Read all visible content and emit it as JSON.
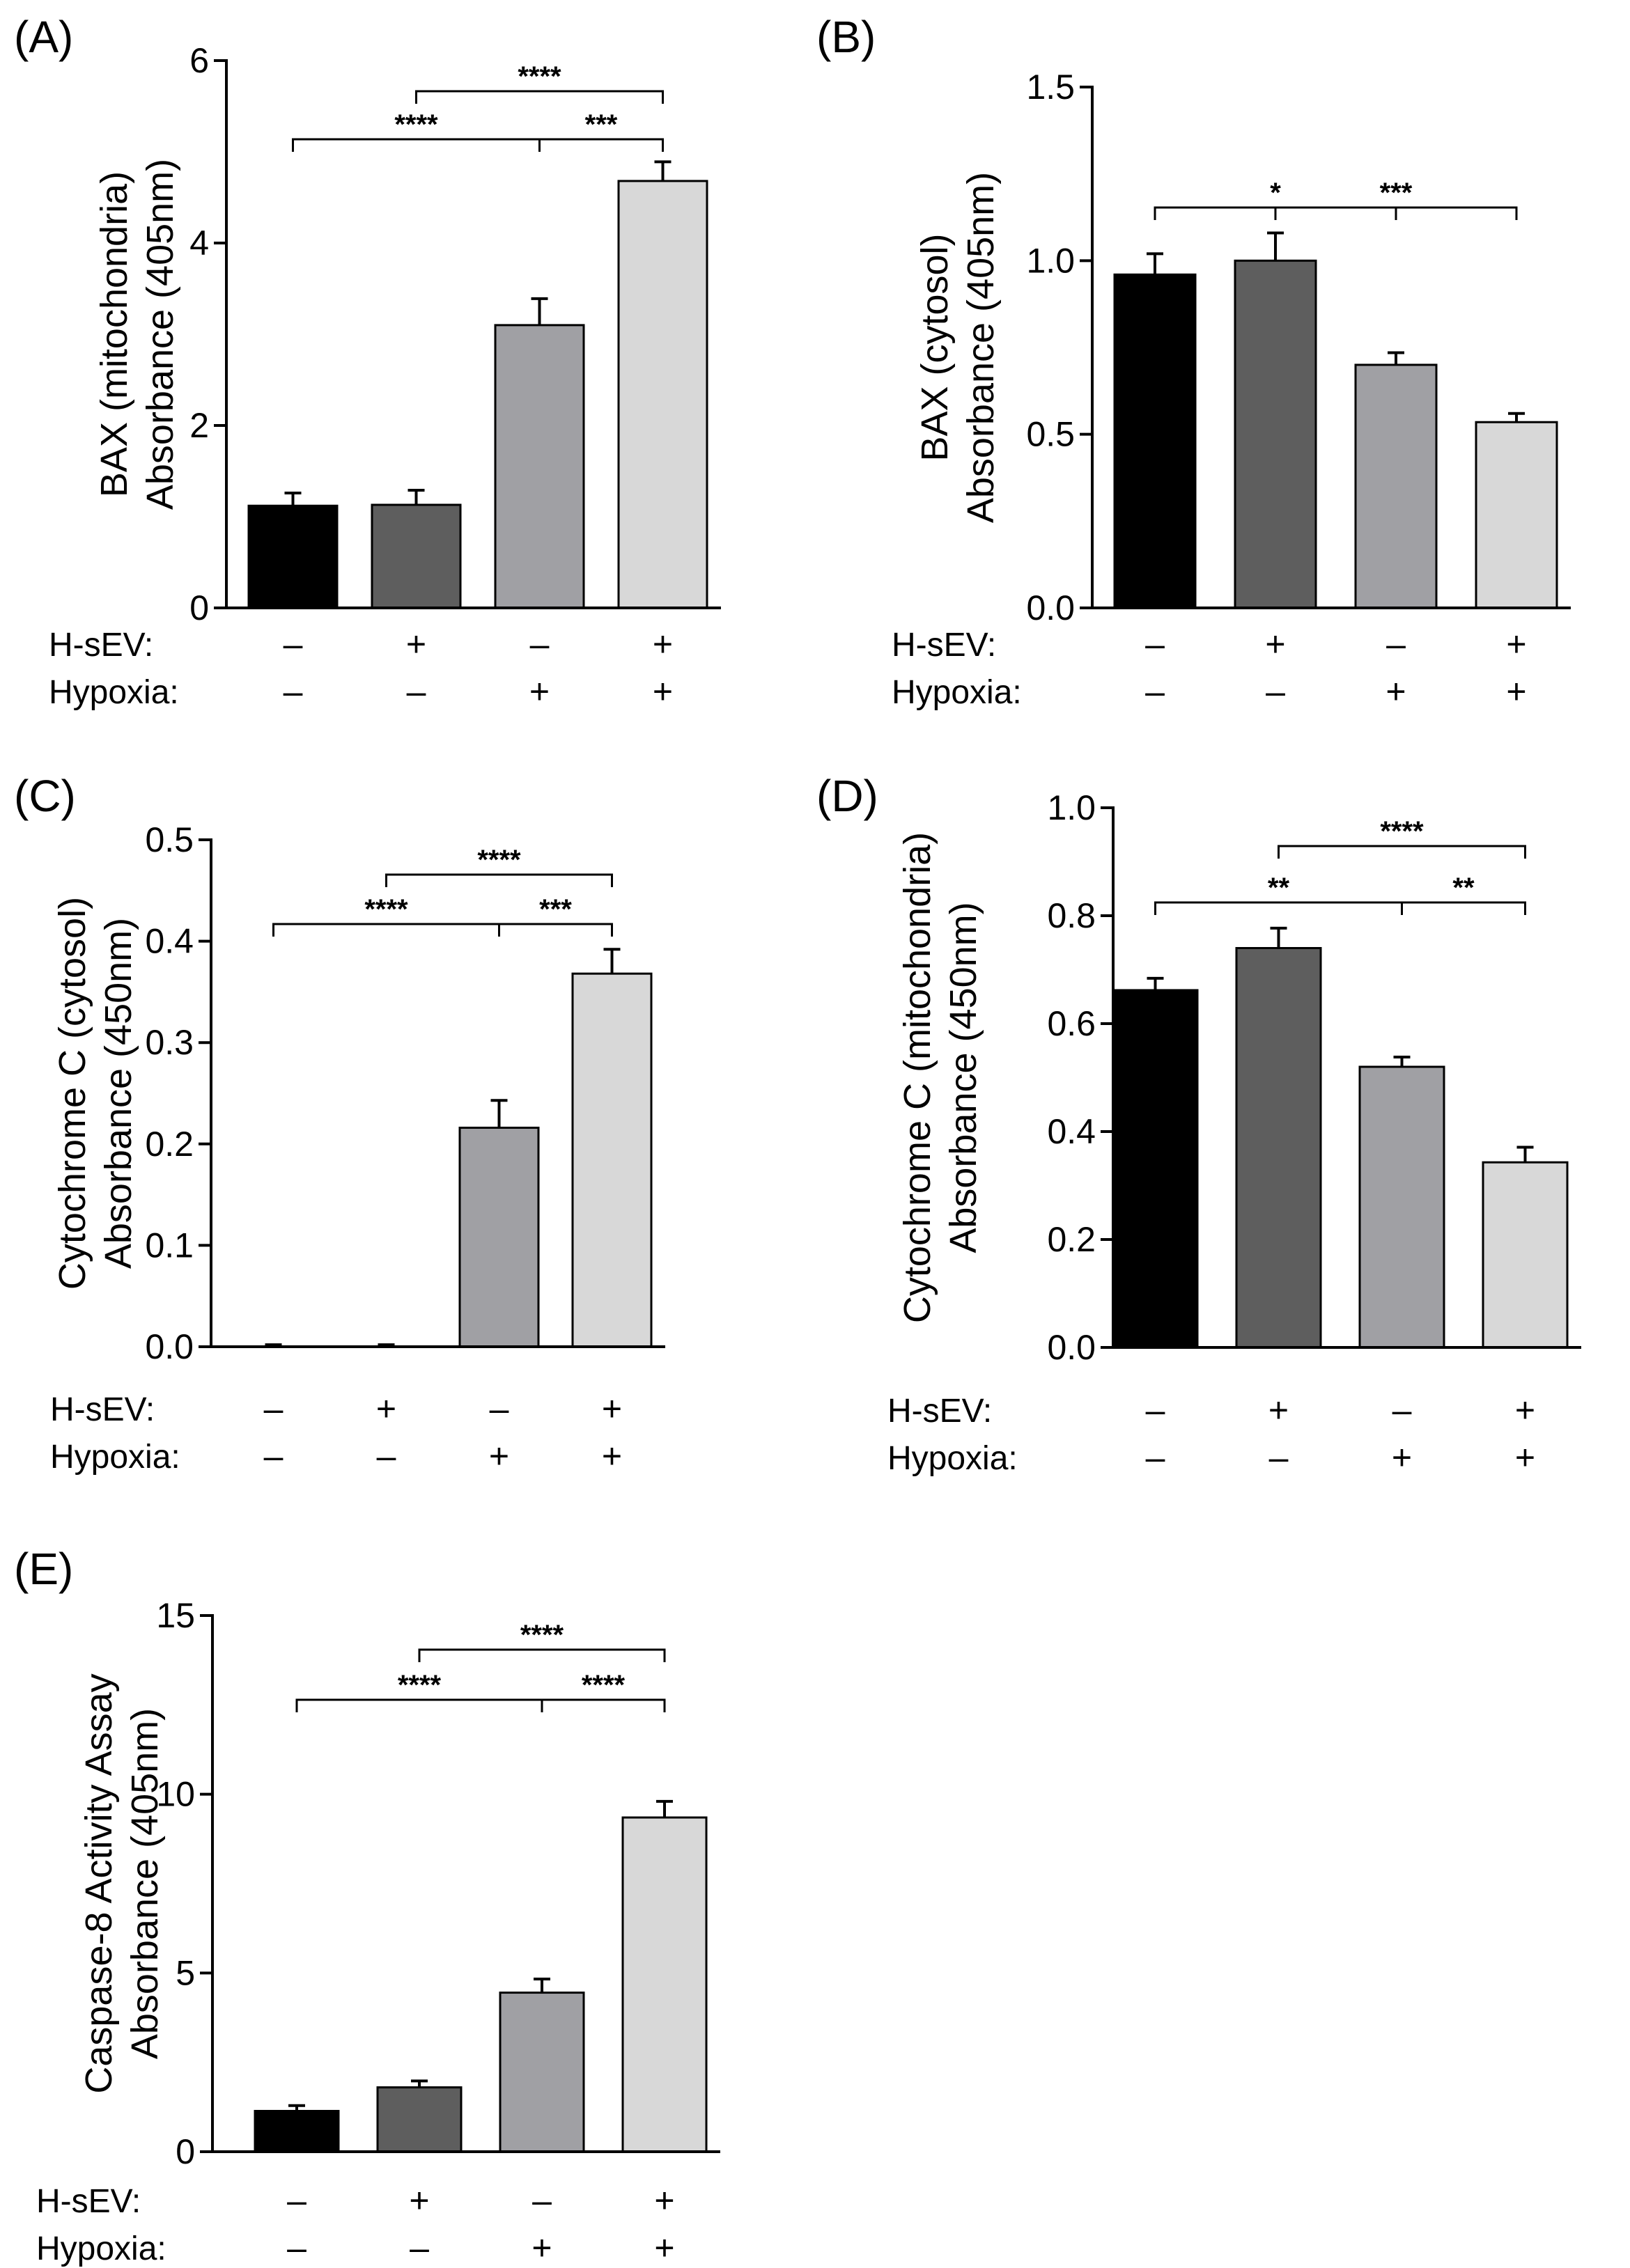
{
  "chart_data": [
    {
      "type": "bar",
      "panel": "(A)",
      "ylabel_lines": [
        "BAX (mitochondria)",
        "Absorbance (405nm)"
      ],
      "ylim": [
        0,
        6
      ],
      "yticks": [
        0,
        2,
        4,
        6
      ],
      "ytick_labels": [
        "0",
        "2",
        "4",
        "6"
      ],
      "values": [
        1.12,
        1.13,
        3.1,
        4.68
      ],
      "errors": [
        0.14,
        0.16,
        0.29,
        0.21
      ],
      "colors": [
        "#000000",
        "#5e5e5e",
        "#a0a0a4",
        "#d8d8d8"
      ],
      "conditions": {
        "row_labels": [
          "H-sEV:",
          "Hypoxia:"
        ],
        "signs": [
          [
            "–",
            "+",
            "–",
            "+"
          ],
          [
            "–",
            "–",
            "+",
            "+"
          ]
        ]
      },
      "significance": [
        {
          "from": 0,
          "to": 2,
          "label": "****"
        },
        {
          "from": 2,
          "to": 3,
          "label": "***"
        },
        {
          "from": 1,
          "to": 3,
          "label": "****"
        }
      ]
    },
    {
      "type": "bar",
      "panel": "(B)",
      "ylabel_lines": [
        "BAX (cytosol)",
        "Absorbance (405nm)"
      ],
      "ylim": [
        0,
        1.5
      ],
      "yticks": [
        0,
        0.5,
        1.0,
        1.5
      ],
      "ytick_labels": [
        "0.0",
        "0.5",
        "1.0",
        "1.5"
      ],
      "values": [
        0.96,
        1.0,
        0.7,
        0.535
      ],
      "errors": [
        0.06,
        0.08,
        0.035,
        0.025
      ],
      "colors": [
        "#000000",
        "#5e5e5e",
        "#a0a0a4",
        "#d8d8d8"
      ],
      "conditions": {
        "row_labels": [
          "H-sEV:",
          "Hypoxia:"
        ],
        "signs": [
          [
            "–",
            "+",
            "–",
            "+"
          ],
          [
            "–",
            "–",
            "+",
            "+"
          ]
        ]
      },
      "significance": [
        {
          "from": 0,
          "to": 2,
          "label": "*"
        },
        {
          "from": 1,
          "to": 3,
          "label": "***"
        }
      ]
    },
    {
      "type": "bar",
      "panel": "(C)",
      "ylabel_lines": [
        "Cytochrome C (cytosol)",
        "Absorbance (450nm)"
      ],
      "ylim": [
        0,
        0.5
      ],
      "yticks": [
        0,
        0.1,
        0.2,
        0.3,
        0.4,
        0.5
      ],
      "ytick_labels": [
        "0.0",
        "0.1",
        "0.2",
        "0.3",
        "0.4",
        "0.5"
      ],
      "values": [
        0.0,
        0.0,
        0.216,
        0.368
      ],
      "errors": [
        0.002,
        0.002,
        0.027,
        0.024
      ],
      "colors": [
        "#000000",
        "#5e5e5e",
        "#a0a0a4",
        "#d8d8d8"
      ],
      "conditions": {
        "row_labels": [
          "H-sEV:",
          "Hypoxia:"
        ],
        "signs": [
          [
            "–",
            "+",
            "–",
            "+"
          ],
          [
            "–",
            "–",
            "+",
            "+"
          ]
        ]
      },
      "significance": [
        {
          "from": 0,
          "to": 2,
          "label": "****"
        },
        {
          "from": 2,
          "to": 3,
          "label": "***"
        },
        {
          "from": 1,
          "to": 3,
          "label": "****"
        }
      ]
    },
    {
      "type": "bar",
      "panel": "(D)",
      "ylabel_lines": [
        "Cytochrome C (mitochondria)",
        "Absorbance (450nm)"
      ],
      "ylim": [
        0,
        1.0
      ],
      "yticks": [
        0,
        0.2,
        0.4,
        0.6,
        0.8,
        1.0
      ],
      "ytick_labels": [
        "0.0",
        "0.2",
        "0.4",
        "0.6",
        "0.8",
        "1.0"
      ],
      "values": [
        0.662,
        0.74,
        0.52,
        0.343
      ],
      "errors": [
        0.022,
        0.037,
        0.018,
        0.028
      ],
      "colors": [
        "#000000",
        "#5e5e5e",
        "#a0a0a4",
        "#d8d8d8"
      ],
      "conditions": {
        "row_labels": [
          "H-sEV:",
          "Hypoxia:"
        ],
        "signs": [
          [
            "–",
            "+",
            "–",
            "+"
          ],
          [
            "–",
            "–",
            "+",
            "+"
          ]
        ]
      },
      "significance": [
        {
          "from": 0,
          "to": 2,
          "label": "**"
        },
        {
          "from": 2,
          "to": 3,
          "label": "**"
        },
        {
          "from": 1,
          "to": 3,
          "label": "****"
        }
      ]
    },
    {
      "type": "bar",
      "panel": "(E)",
      "ylabel_lines": [
        "Caspase-8 Activity Assay",
        "Absorbance (405nm)"
      ],
      "ylim": [
        0,
        15
      ],
      "yticks": [
        0,
        5,
        10,
        15
      ],
      "ytick_labels": [
        "0",
        "5",
        "10",
        "15"
      ],
      "values": [
        1.14,
        1.8,
        4.45,
        9.35
      ],
      "errors": [
        0.15,
        0.18,
        0.38,
        0.45
      ],
      "colors": [
        "#000000",
        "#5e5e5e",
        "#a0a0a4",
        "#d8d8d8"
      ],
      "conditions": {
        "row_labels": [
          "H-sEV:",
          "Hypoxia:"
        ],
        "signs": [
          [
            "–",
            "+",
            "–",
            "+"
          ],
          [
            "–",
            "–",
            "+",
            "+"
          ]
        ]
      },
      "significance": [
        {
          "from": 0,
          "to": 2,
          "label": "****"
        },
        {
          "from": 2,
          "to": 3,
          "label": "****"
        },
        {
          "from": 1,
          "to": 3,
          "label": "****"
        }
      ]
    }
  ]
}
